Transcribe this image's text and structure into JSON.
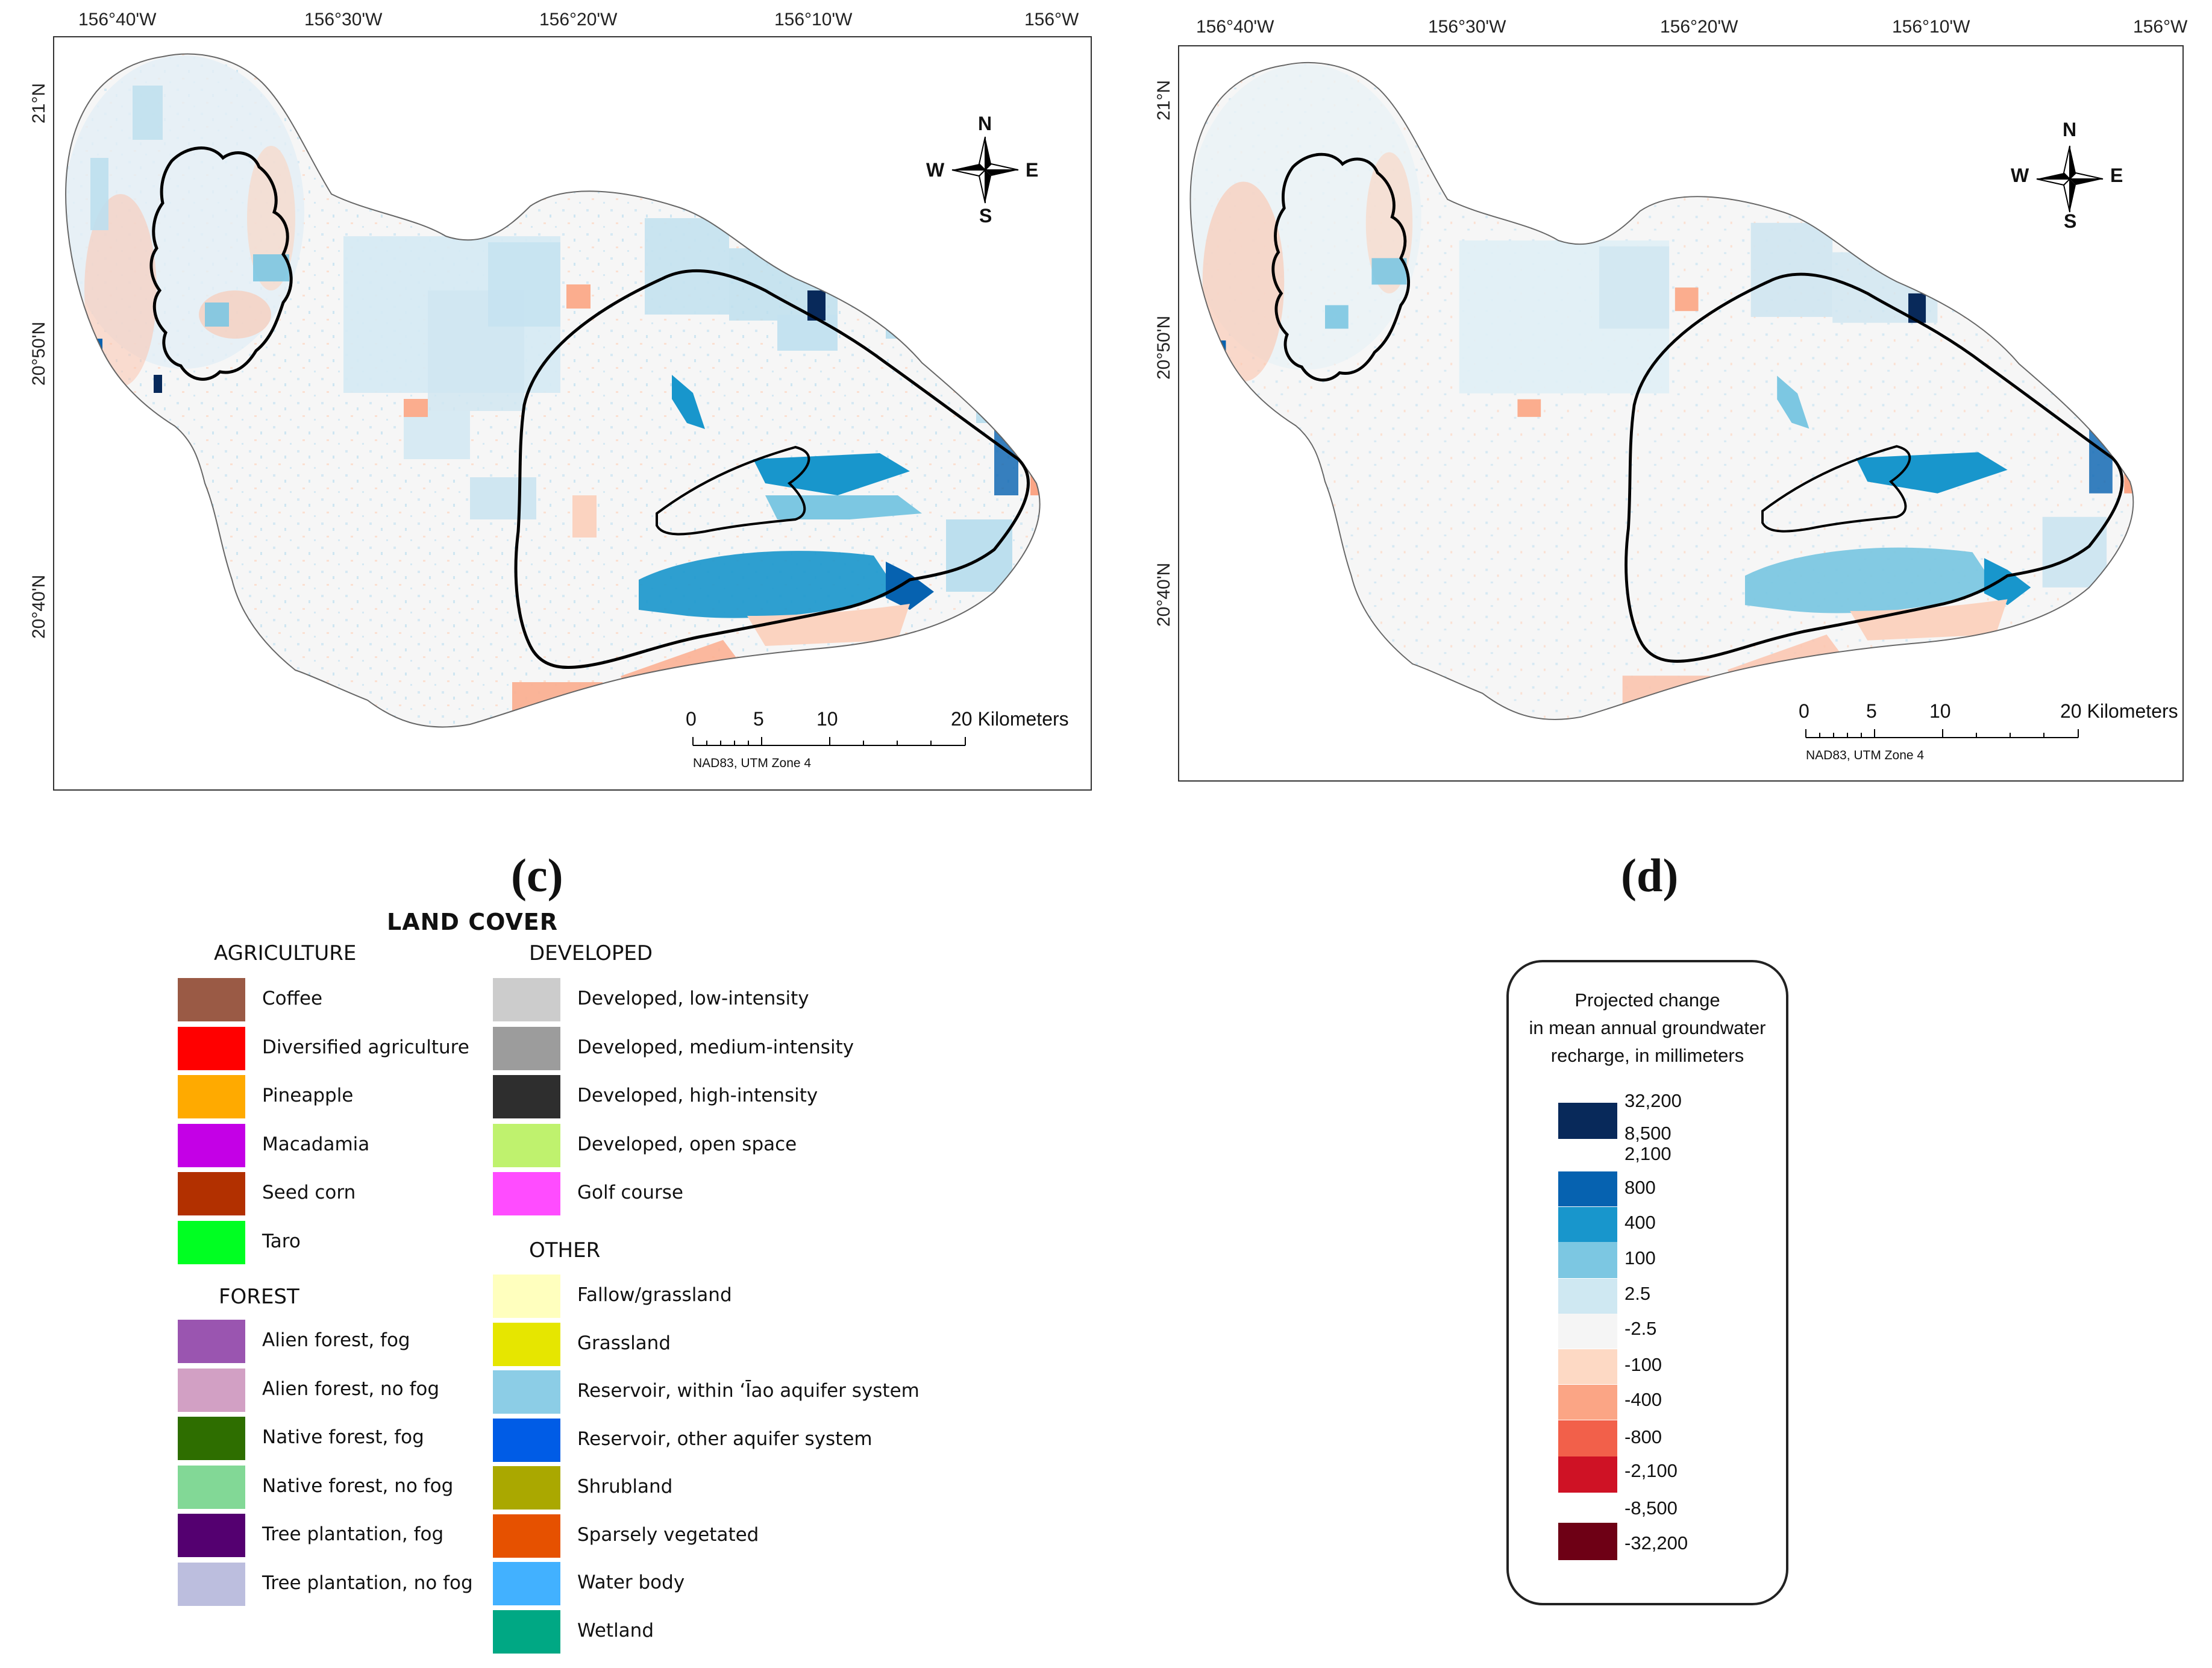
{
  "map_c": {
    "lon_labels": [
      "156°40'W",
      "156°30'W",
      "156°20'W",
      "156°10'W",
      "156°W"
    ],
    "lat_labels": [
      "21°N",
      "20°50'N",
      "20°40'N"
    ],
    "compass": {
      "n": "N",
      "s": "S",
      "e": "E",
      "w": "W"
    },
    "scale": {
      "ticks": [
        "0",
        "5",
        "10",
        "20 Kilometers"
      ],
      "projection": "NAD83, UTM Zone 4"
    },
    "panel_label": "(c)"
  },
  "map_d": {
    "lon_labels": [
      "156°40'W",
      "156°30'W",
      "156°20'W",
      "156°10'W",
      "156°W"
    ],
    "lat_labels": [
      "21°N",
      "20°50'N",
      "20°40'N"
    ],
    "compass": {
      "n": "N",
      "s": "S",
      "e": "E",
      "w": "W"
    },
    "scale": {
      "ticks": [
        "0",
        "5",
        "10",
        "20 Kilometers"
      ],
      "projection": "NAD83, UTM Zone 4"
    },
    "panel_label": "(d)"
  },
  "land_cover": {
    "title": "LAND COVER",
    "agriculture": {
      "heading": "AGRICULTURE",
      "items": [
        {
          "label": "Coffee",
          "color": "#9a5a45"
        },
        {
          "label": "Diversified agriculture",
          "color": "#ff0000"
        },
        {
          "label": "Pineapple",
          "color": "#ffaa00"
        },
        {
          "label": "Macadamia",
          "color": "#c400e6"
        },
        {
          "label": "Seed corn",
          "color": "#b23000"
        },
        {
          "label": "Taro",
          "color": "#00ff22"
        }
      ]
    },
    "forest": {
      "heading": "FOREST",
      "items": [
        {
          "label": "Alien forest, fog",
          "color": "#9a55b0"
        },
        {
          "label": "Alien forest, no fog",
          "color": "#d2a0c4"
        },
        {
          "label": "Native forest, fog",
          "color": "#2e6e00"
        },
        {
          "label": "Native forest, no fog",
          "color": "#82d896"
        },
        {
          "label": "Tree plantation, fog",
          "color": "#540070"
        },
        {
          "label": "Tree plantation, no fog",
          "color": "#bcbede"
        }
      ]
    },
    "developed": {
      "heading": "DEVELOPED",
      "items": [
        {
          "label": "Developed, low-intensity",
          "color": "#cccccc"
        },
        {
          "label": "Developed, medium-intensity",
          "color": "#9c9c9c"
        },
        {
          "label": "Developed, high-intensity",
          "color": "#2e2e2e"
        },
        {
          "label": "Developed, open space",
          "color": "#bff26e"
        },
        {
          "label": "Golf course",
          "color": "#ff4cff"
        }
      ]
    },
    "other": {
      "heading": "OTHER",
      "items": [
        {
          "label": "Fallow/grassland",
          "color": "#ffffbe"
        },
        {
          "label": "Grassland",
          "color": "#e6e600"
        },
        {
          "label": "Reservoir, within ʻĪao aquifer system",
          "color": "#8ccde6"
        },
        {
          "label": "Reservoir, other aquifer system",
          "color": "#005ce6"
        },
        {
          "label": "Shrubland",
          "color": "#aaa800"
        },
        {
          "label": "Sparsely vegetated",
          "color": "#e65100"
        },
        {
          "label": "Water body",
          "color": "#42b1ff"
        },
        {
          "label": "Wetland",
          "color": "#00a884"
        }
      ]
    }
  },
  "recharge_legend": {
    "title_lines": [
      "Projected change",
      "in mean annual groundwater",
      "recharge, in millimeters"
    ],
    "classes": [
      {
        "label_top": "32,200",
        "label_bottom": "8,500",
        "color": "#08295a"
      },
      {
        "label_top": "2,100",
        "color": "#0662b0"
      },
      {
        "label_top": "800",
        "color": "#1896cc"
      },
      {
        "label_top": "400",
        "color": "#7cc7e2"
      },
      {
        "label_top": "100",
        "color": "#cfe8f2"
      },
      {
        "label_top": "2.5",
        "color": "#f5f5f5"
      },
      {
        "label_top": "-2.5",
        "color": "#fdd9c4"
      },
      {
        "label_top": "-100",
        "color": "#fba585"
      },
      {
        "label_top": "-400",
        "color": "#f2604a"
      },
      {
        "label_top": "-800",
        "label_bottom": "-2,100",
        "color": "#cf1225"
      },
      {
        "label_top": "-8,500",
        "label_bottom": "-32,200",
        "color": "#6e0015"
      }
    ]
  }
}
